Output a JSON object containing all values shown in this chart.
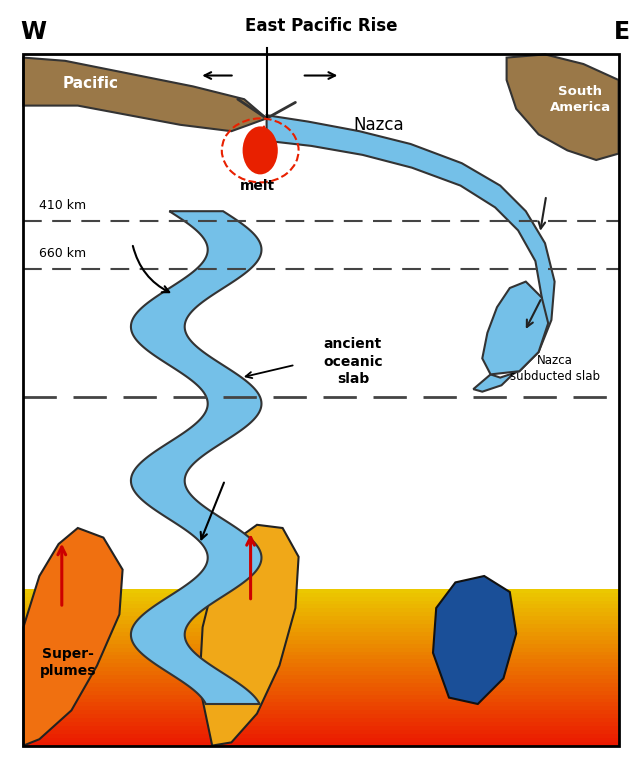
{
  "title": "East Pacific Rise",
  "label_W": "W",
  "label_E": "E",
  "label_pacific": "Pacific",
  "label_nazca": "Nazca",
  "label_south_america": "South\nAmerica",
  "label_melt": "melt",
  "label_410": "410 km",
  "label_660": "660 km",
  "label_ancient": "ancient\noceanic\nslab",
  "label_nazca_slab": "Nazca\nsubducted slab",
  "label_superplumes": "Super-\nplumes",
  "bg_color": "#ffffff",
  "box_color": "#000000",
  "blue_slab": "#74c0e8",
  "dark_blue": "#1a4f98",
  "brown_color": "#9a7848",
  "red_melt": "#e82000",
  "dashed_line_color": "#444444"
}
